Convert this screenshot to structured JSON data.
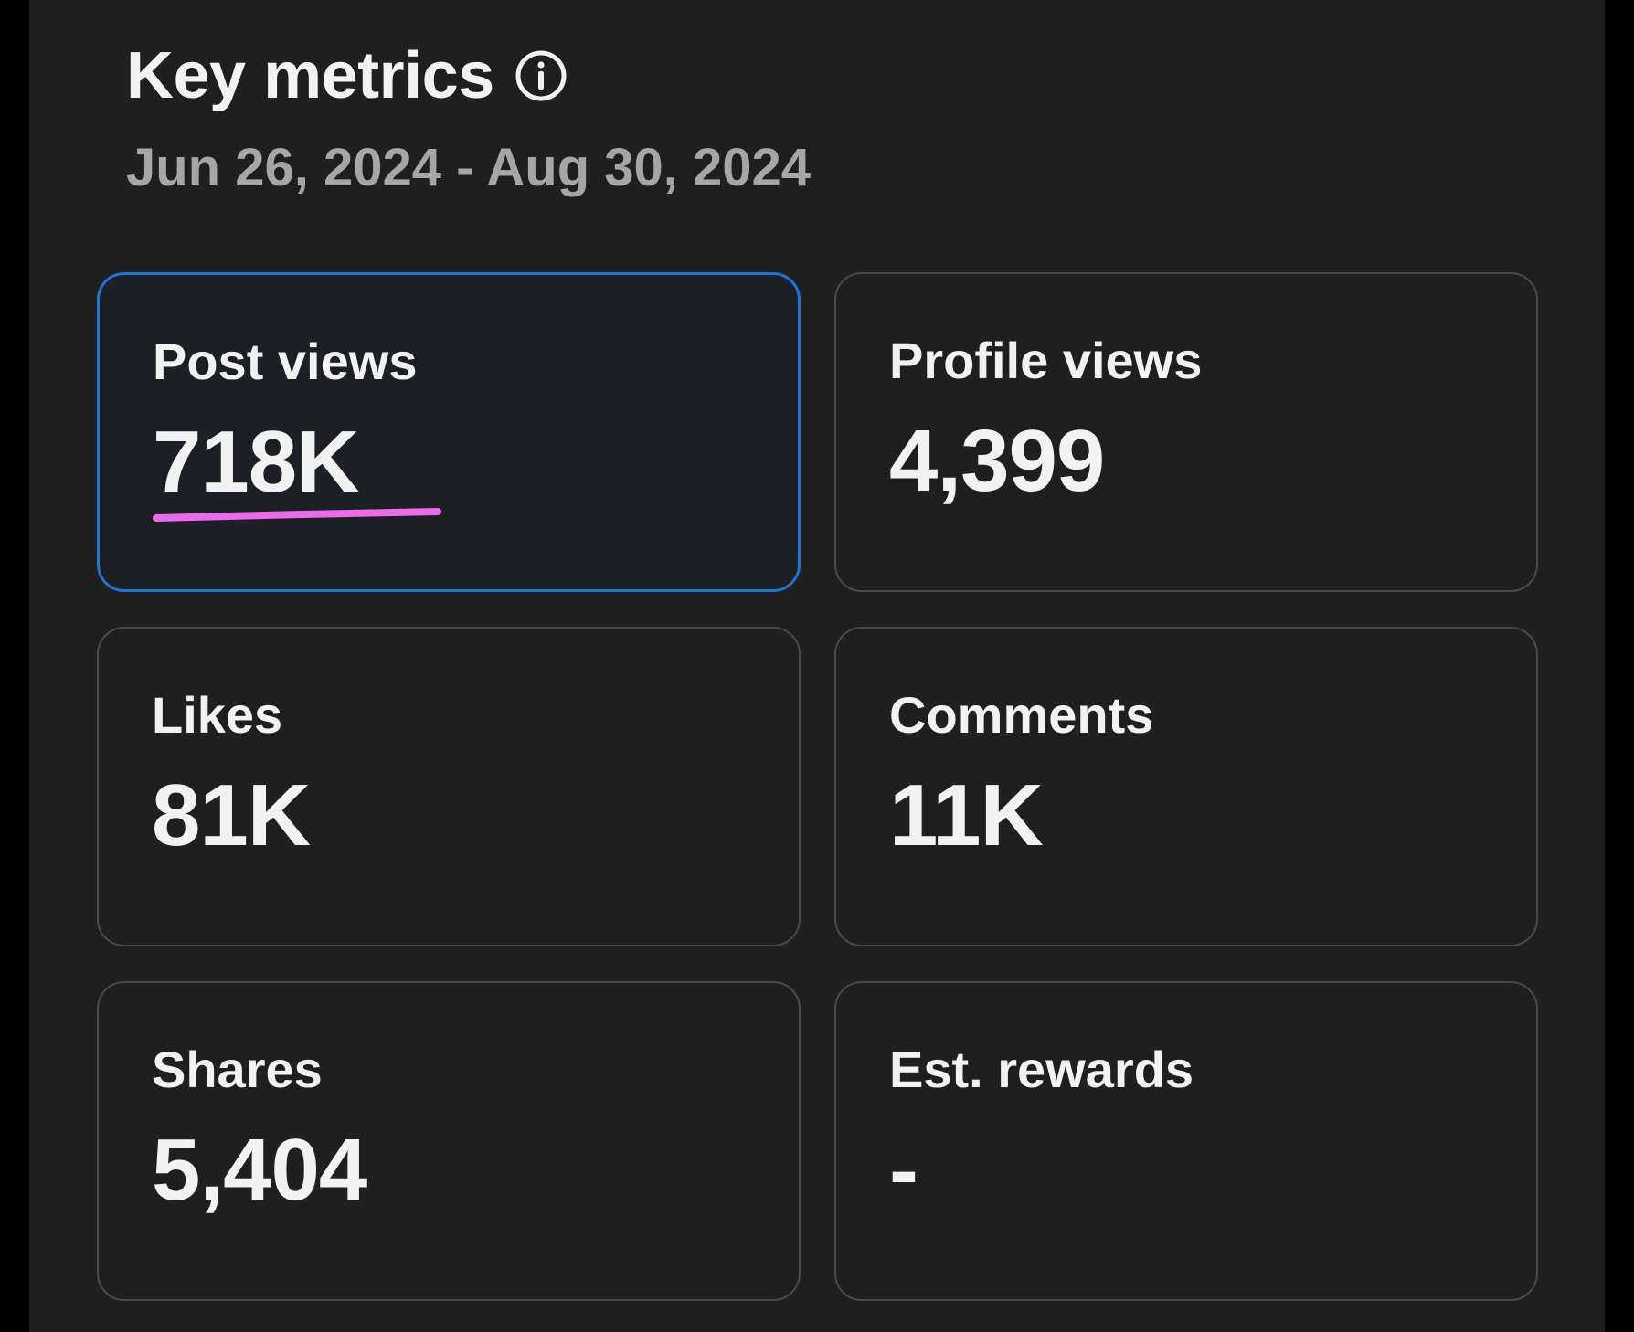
{
  "header": {
    "title": "Key metrics",
    "date_range": "Jun 26, 2024 - Aug 30, 2024"
  },
  "metrics": [
    {
      "label": "Post views",
      "value": "718K",
      "selected": true
    },
    {
      "label": "Profile views",
      "value": "4,399",
      "selected": false
    },
    {
      "label": "Likes",
      "value": "81K",
      "selected": false
    },
    {
      "label": "Comments",
      "value": "11K",
      "selected": false
    },
    {
      "label": "Shares",
      "value": "5,404",
      "selected": false
    },
    {
      "label": "Est. rewards",
      "value": "-",
      "selected": false
    }
  ],
  "colors": {
    "background": "#1f1f1f",
    "selected_border": "#1f74d6",
    "underline": "#ec6bea",
    "text": "#f2f2f2",
    "subtext": "#a6a6a6"
  }
}
